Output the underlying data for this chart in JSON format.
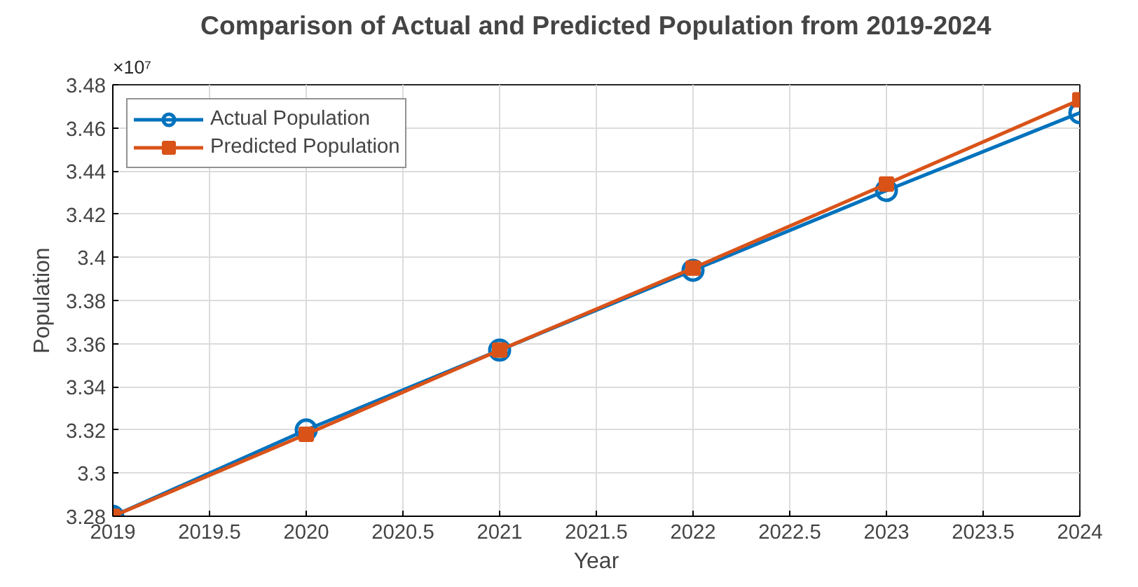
{
  "chart_data": {
    "type": "line",
    "title": "Comparison of Actual and Predicted Population from 2019-2024",
    "xlabel": "Year",
    "ylabel": "Population",
    "annotations": [
      "×10⁷"
    ],
    "x": [
      2019,
      2020,
      2021,
      2022,
      2023,
      2024
    ],
    "series": [
      {
        "name": "Actual Population",
        "color": "#0072bd",
        "marker": "circle",
        "values": [
          3.28,
          3.32,
          3.357,
          3.394,
          3.431,
          3.467
        ]
      },
      {
        "name": "Predicted Population",
        "color": "#d95319",
        "marker": "square",
        "values": [
          3.28,
          3.318,
          3.357,
          3.395,
          3.434,
          3.473
        ]
      }
    ],
    "xlim": [
      2019,
      2024
    ],
    "xticks": [
      2019,
      2019.5,
      2020,
      2020.5,
      2021,
      2021.5,
      2022,
      2022.5,
      2023,
      2023.5,
      2024
    ],
    "ylim": [
      3.28,
      3.48
    ],
    "yticks": [
      3.28,
      3.3,
      3.32,
      3.34,
      3.36,
      3.38,
      3.4,
      3.42,
      3.44,
      3.46,
      3.48
    ],
    "grid": true,
    "legend": "top left",
    "line_style": "solid"
  }
}
